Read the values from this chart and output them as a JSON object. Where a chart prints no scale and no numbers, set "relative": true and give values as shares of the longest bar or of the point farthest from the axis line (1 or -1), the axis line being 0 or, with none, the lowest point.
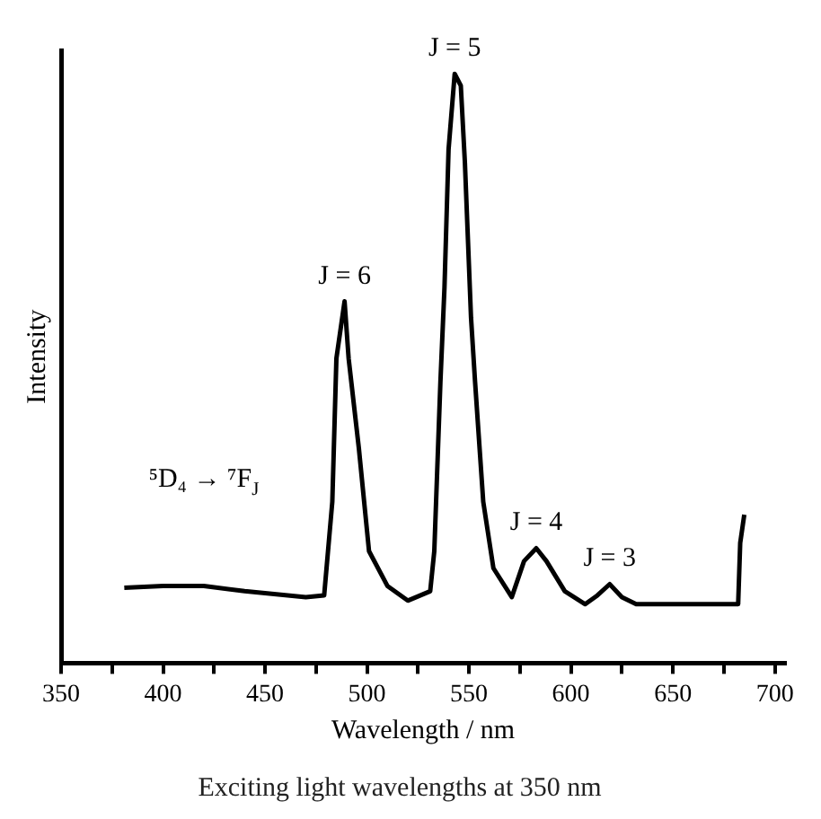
{
  "chart_data": {
    "type": "line",
    "title": "Exciting light wavelengths at 350 nm",
    "xlabel": "Wavelength / nm",
    "ylabel": "Intensity",
    "relative": true,
    "xlim": [
      350,
      705
    ],
    "xticks": [
      350,
      {
        "value": 375,
        "label": null
      },
      400,
      {
        "value": 425,
        "label": null
      },
      450,
      {
        "value": 475,
        "label": null
      },
      500,
      {
        "value": 525,
        "label": null
      },
      550,
      {
        "value": 575,
        "label": null
      },
      600,
      {
        "value": 625,
        "label": null
      },
      650,
      {
        "value": 675,
        "label": null
      },
      700
    ],
    "series": [
      {
        "color": "#000000",
        "x": [
          381,
          400,
          420,
          440,
          470,
          479,
          483,
          485,
          489,
          491,
          496,
          501,
          510,
          520,
          531,
          533,
          536,
          538,
          540,
          543,
          546,
          548,
          551,
          553,
          557,
          562,
          571,
          577,
          583,
          588,
          597,
          607,
          613,
          619,
          625,
          632,
          682,
          683,
          685
        ],
        "values": [
          0.128,
          0.131,
          0.131,
          0.122,
          0.112,
          0.115,
          0.274,
          0.517,
          0.614,
          0.517,
          0.365,
          0.19,
          0.131,
          0.106,
          0.122,
          0.19,
          0.477,
          0.638,
          0.872,
          1.0,
          0.98,
          0.85,
          0.587,
          0.477,
          0.274,
          0.161,
          0.112,
          0.173,
          0.195,
          0.173,
          0.122,
          0.1,
          0.115,
          0.134,
          0.112,
          0.1,
          0.1,
          0.204,
          0.252
        ]
      }
    ],
    "annotations": [
      {
        "text": "J = 6",
        "x": 489,
        "y": 0.614
      },
      {
        "text": "J = 5",
        "x": 543,
        "y": 1.0
      },
      {
        "text": "J = 4",
        "x": 583,
        "y": 0.195
      },
      {
        "text": "J = 3",
        "x": 619,
        "y": 0.134
      },
      "⁵D₄ → ⁷F$_{J}$"
    ],
    "grid": false,
    "legend": false,
    "marker": "none",
    "line_style": "solid"
  }
}
